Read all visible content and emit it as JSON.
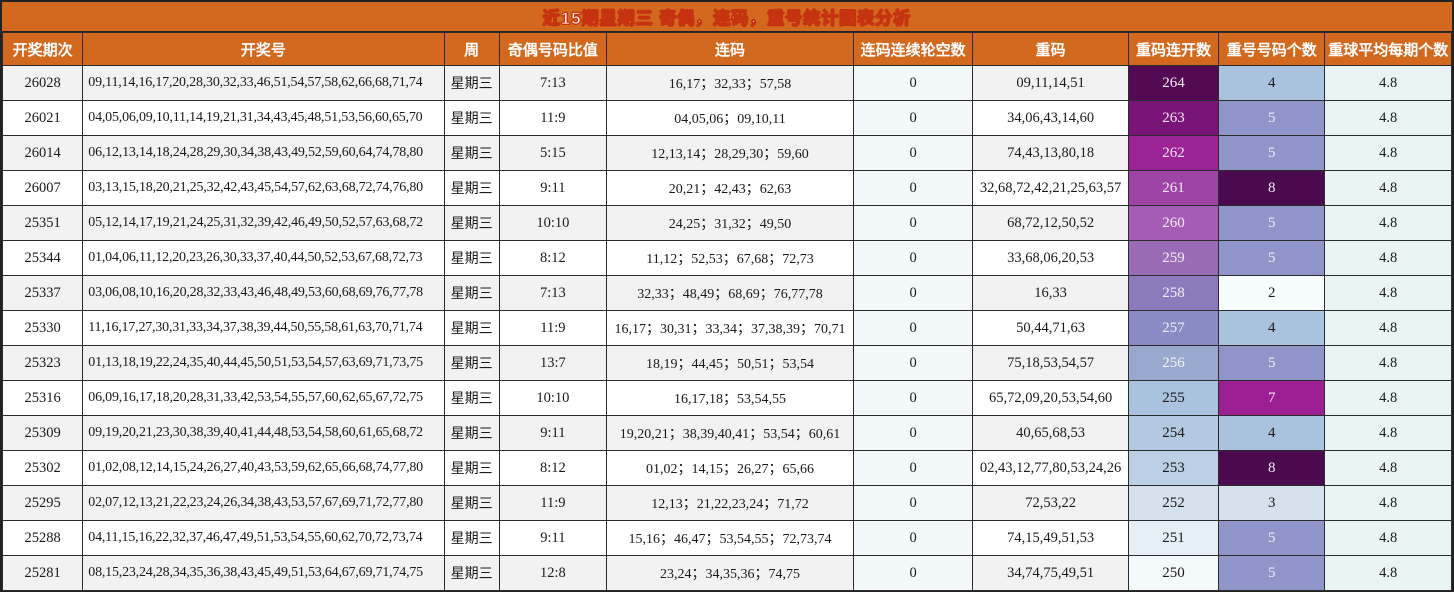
{
  "title": "近15期星期三 奇偶，连码，重号统计图表分析",
  "colors": {
    "header_bg": "#d2691e",
    "title_text": "#fff3ec",
    "title_outline": "#c63310",
    "stripe_odd": "#f2f2f2",
    "stripe_even": "#ffffff",
    "skip_col_bg": "#f3f9fb",
    "avg_col_bg": "#eaf4f5",
    "border": "#2b2b2b"
  },
  "table": {
    "columns": [
      "开奖期次",
      "开奖号",
      "周",
      "奇偶号码比值",
      "连码",
      "连码连续轮空数",
      "重码",
      "重码连开数",
      "重号号码个数",
      "重球平均每期个数"
    ],
    "rows": [
      {
        "period": "26028",
        "numbers": "09,11,14,16,17,20,28,30,32,33,46,51,54,57,58,62,66,68,71,74",
        "week": "星期三",
        "odd_even": "7:13",
        "consecutive": "16,17；32,33；57,58",
        "skip": "0",
        "repeat": "09,11,14,51",
        "streak": "264",
        "streak_bg": "#530953",
        "streak_fg": "#f5f0f5",
        "count": "4",
        "count_bg": "#a9c2de",
        "count_fg": "#1a1a1a",
        "avg": "4.8"
      },
      {
        "period": "26021",
        "numbers": "04,05,06,09,10,11,14,19,21,31,34,43,45,48,51,53,56,60,65,70",
        "week": "星期三",
        "odd_even": "11:9",
        "consecutive": "04,05,06；09,10,11",
        "skip": "0",
        "repeat": "34,06,43,14,60",
        "streak": "263",
        "streak_bg": "#7b1479",
        "streak_fg": "#f2e9f2",
        "count": "5",
        "count_bg": "#8f95c8",
        "count_fg": "#eceef7",
        "avg": "4.8"
      },
      {
        "period": "26014",
        "numbers": "06,12,13,14,18,24,28,29,30,34,38,43,49,52,59,60,64,74,78,80",
        "week": "星期三",
        "odd_even": "5:15",
        "consecutive": "12,13,14；28,29,30；59,60",
        "skip": "0",
        "repeat": "74,43,13,80,18",
        "streak": "262",
        "streak_bg": "#9c2396",
        "streak_fg": "#f5e8f4",
        "count": "5",
        "count_bg": "#8f95c8",
        "count_fg": "#eceef7",
        "avg": "4.8"
      },
      {
        "period": "26007",
        "numbers": "03,13,15,18,20,21,25,32,42,43,45,54,57,62,63,68,72,74,76,80",
        "week": "星期三",
        "odd_even": "9:11",
        "consecutive": "20,21；42,43；62,63",
        "skip": "0",
        "repeat": "32,68,72,42,21,25,63,57",
        "streak": "261",
        "streak_bg": "#9d44a6",
        "streak_fg": "#f4eaf5",
        "count": "8",
        "count_bg": "#4b0a50",
        "count_fg": "#f0e8f0",
        "avg": "4.8"
      },
      {
        "period": "25351",
        "numbers": "05,12,14,17,19,21,24,25,31,32,39,42,46,49,50,52,57,63,68,72",
        "week": "星期三",
        "odd_even": "10:10",
        "consecutive": "24,25；31,32；49,50",
        "skip": "0",
        "repeat": "68,72,12,50,52",
        "streak": "260",
        "streak_bg": "#a55cb5",
        "streak_fg": "#f5eef7",
        "count": "5",
        "count_bg": "#8f95c8",
        "count_fg": "#eceef7",
        "avg": "4.8"
      },
      {
        "period": "25344",
        "numbers": "01,04,06,11,12,20,23,26,30,33,37,40,44,50,52,53,67,68,72,73",
        "week": "星期三",
        "odd_even": "8:12",
        "consecutive": "11,12；52,53；67,68；72,73",
        "skip": "0",
        "repeat": "33,68,06,20,53",
        "streak": "259",
        "streak_bg": "#9a6cb6",
        "streak_fg": "#f3eef7",
        "count": "5",
        "count_bg": "#8f95c8",
        "count_fg": "#eceef7",
        "avg": "4.8"
      },
      {
        "period": "25337",
        "numbers": "03,06,08,10,16,20,28,32,33,43,46,48,49,53,60,68,69,76,77,78",
        "week": "星期三",
        "odd_even": "7:13",
        "consecutive": "32,33；48,49；68,69；76,77,78",
        "skip": "0",
        "repeat": "16,33",
        "streak": "258",
        "streak_bg": "#8d7abc",
        "streak_fg": "#f1eff8",
        "count": "2",
        "count_bg": "#f7fcfd",
        "count_fg": "#1a1a1a",
        "avg": "4.8"
      },
      {
        "period": "25330",
        "numbers": "11,16,17,27,30,31,33,34,37,38,39,44,50,55,58,61,63,70,71,74",
        "week": "星期三",
        "odd_even": "11:9",
        "consecutive": "16,17；30,31；33,34；37,38,39；70,71",
        "skip": "0",
        "repeat": "50,44,71,63",
        "streak": "257",
        "streak_bg": "#8a8ac4",
        "streak_fg": "#f0f1f9",
        "count": "4",
        "count_bg": "#a9c2de",
        "count_fg": "#1a1a1a",
        "avg": "4.8"
      },
      {
        "period": "25323",
        "numbers": "01,13,18,19,22,24,35,40,44,45,50,51,53,54,57,63,69,71,73,75",
        "week": "星期三",
        "odd_even": "13:7",
        "consecutive": "18,19；44,45；50,51；53,54",
        "skip": "0",
        "repeat": "75,18,53,54,57",
        "streak": "256",
        "streak_bg": "#99a8ce",
        "streak_fg": "#f2f5fa",
        "count": "5",
        "count_bg": "#8f95c8",
        "count_fg": "#eceef7",
        "avg": "4.8"
      },
      {
        "period": "25316",
        "numbers": "06,09,16,17,18,20,28,31,33,42,53,54,55,57,60,62,65,67,72,75",
        "week": "星期三",
        "odd_even": "10:10",
        "consecutive": "16,17,18；53,54,55",
        "skip": "0",
        "repeat": "65,72,09,20,53,54,60",
        "streak": "255",
        "streak_bg": "#a9c2de",
        "streak_fg": "#1a1a1a",
        "count": "7",
        "count_bg": "#9c2093",
        "count_fg": "#f5e8f4",
        "avg": "4.8"
      },
      {
        "period": "25309",
        "numbers": "09,19,20,21,23,30,38,39,40,41,44,48,53,54,58,60,61,65,68,72",
        "week": "星期三",
        "odd_even": "9:11",
        "consecutive": "19,20,21；38,39,40,41；53,54；60,61",
        "skip": "0",
        "repeat": "40,65,68,53",
        "streak": "254",
        "streak_bg": "#b2c9e1",
        "streak_fg": "#1a1a1a",
        "count": "4",
        "count_bg": "#a9c2de",
        "count_fg": "#1a1a1a",
        "avg": "4.8"
      },
      {
        "period": "25302",
        "numbers": "01,02,08,12,14,15,24,26,27,40,43,53,59,62,65,66,68,74,77,80",
        "week": "星期三",
        "odd_even": "8:12",
        "consecutive": "01,02；14,15；26,27；65,66",
        "skip": "0",
        "repeat": "02,43,12,77,80,53,24,26",
        "streak": "253",
        "streak_bg": "#bcd0e5",
        "streak_fg": "#1a1a1a",
        "count": "8",
        "count_bg": "#4b0a50",
        "count_fg": "#f0e8f0",
        "avg": "4.8"
      },
      {
        "period": "25295",
        "numbers": "02,07,12,13,21,22,23,24,26,34,38,43,53,57,67,69,71,72,77,80",
        "week": "星期三",
        "odd_even": "11:9",
        "consecutive": "12,13；21,22,23,24；71,72",
        "skip": "0",
        "repeat": "72,53,22",
        "streak": "252",
        "streak_bg": "#d5e2ee",
        "streak_fg": "#1a1a1a",
        "count": "3",
        "count_bg": "#d5e2ee",
        "count_fg": "#1a1a1a",
        "avg": "4.8"
      },
      {
        "period": "25288",
        "numbers": "04,11,15,16,22,32,37,46,47,49,51,53,54,55,60,62,70,72,73,74",
        "week": "星期三",
        "odd_even": "9:11",
        "consecutive": "15,16；46,47；53,54,55；72,73,74",
        "skip": "0",
        "repeat": "74,15,49,51,53",
        "streak": "251",
        "streak_bg": "#e6eef6",
        "streak_fg": "#1a1a1a",
        "count": "5",
        "count_bg": "#8f95c8",
        "count_fg": "#eceef7",
        "avg": "4.8"
      },
      {
        "period": "25281",
        "numbers": "08,15,23,24,28,34,35,36,38,43,45,49,51,53,64,67,69,71,74,75",
        "week": "星期三",
        "odd_even": "12:8",
        "consecutive": "23,24；34,35,36；74,75",
        "skip": "0",
        "repeat": "34,74,75,49,51",
        "streak": "250",
        "streak_bg": "#f4fafb",
        "streak_fg": "#1a1a1a",
        "count": "5",
        "count_bg": "#8f95c8",
        "count_fg": "#eceef7",
        "avg": "4.8"
      }
    ]
  }
}
